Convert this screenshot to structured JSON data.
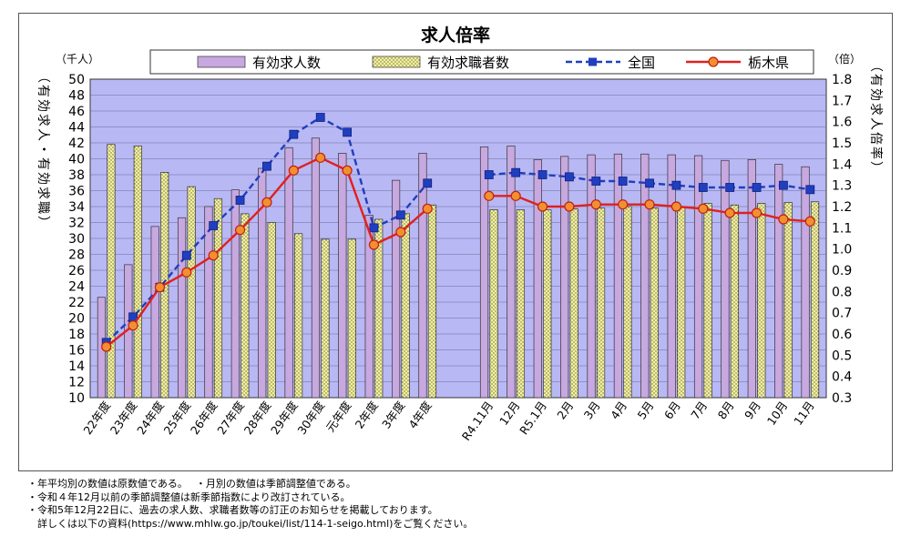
{
  "chart_data": {
    "type": "bar",
    "title": "求人倍率",
    "left_axis": {
      "label": "有効求人・有効求職",
      "unit": "（千人）",
      "ylim": [
        10,
        50
      ],
      "step": 2
    },
    "right_axis": {
      "label": "有効求人倍率",
      "unit": "（倍）",
      "ylim": [
        0.3,
        1.8
      ],
      "step": 0.1
    },
    "categories": [
      "22年度",
      "23年度",
      "24年度",
      "25年度",
      "26年度",
      "27年度",
      "28年度",
      "29年度",
      "30年度",
      "元年度",
      "2年度",
      "3年度",
      "4年度",
      "R4.11月",
      "12月",
      "R5.1月",
      "2月",
      "3月",
      "4月",
      "5月",
      "6月",
      "7月",
      "8月",
      "9月",
      "10月",
      "11月"
    ],
    "gap_after_index": 12,
    "series": [
      {
        "name": "有効求人数",
        "kind": "bar",
        "axis": "left",
        "color": "#c8a8e0",
        "values": [
          22.6,
          26.7,
          31.5,
          32.6,
          34.0,
          36.1,
          38.8,
          41.4,
          42.6,
          40.7,
          32.9,
          37.3,
          40.7,
          41.5,
          41.6,
          39.9,
          40.3,
          40.5,
          40.6,
          40.6,
          40.5,
          40.4,
          39.8,
          39.9,
          39.3,
          39.0
        ]
      },
      {
        "name": "有効求職者数",
        "kind": "bar",
        "axis": "left",
        "color": "#f2f0a0",
        "values": [
          41.8,
          41.6,
          38.3,
          36.5,
          35.0,
          33.1,
          32.0,
          30.6,
          29.9,
          29.9,
          32.4,
          33.1,
          34.2,
          33.6,
          33.6,
          33.6,
          33.7,
          33.8,
          34.0,
          33.8,
          33.9,
          34.4,
          34.2,
          34.4,
          34.5,
          34.6
        ]
      },
      {
        "name": "全国",
        "kind": "line",
        "axis": "right",
        "color": "#1f3fbf",
        "dashed": true,
        "marker": "square",
        "values": [
          0.56,
          0.68,
          0.82,
          0.97,
          1.11,
          1.23,
          1.39,
          1.54,
          1.62,
          1.55,
          1.1,
          1.16,
          1.31,
          1.35,
          1.36,
          1.35,
          1.34,
          1.32,
          1.32,
          1.31,
          1.3,
          1.29,
          1.29,
          1.29,
          1.3,
          1.28
        ]
      },
      {
        "name": "栃木県",
        "kind": "line",
        "axis": "right",
        "color": "#e02020",
        "dashed": false,
        "marker": "circle",
        "values": [
          0.54,
          0.64,
          0.82,
          0.89,
          0.97,
          1.09,
          1.22,
          1.37,
          1.43,
          1.37,
          1.02,
          1.08,
          1.19,
          1.25,
          1.25,
          1.2,
          1.2,
          1.21,
          1.21,
          1.21,
          1.2,
          1.19,
          1.17,
          1.17,
          1.14,
          1.13
        ]
      }
    ],
    "legend_position": "top",
    "grid": true
  },
  "notes": [
    "・年平均別の数値は原数値である。　 ・月別の数値は季節調整値である。",
    "・令和４年12月以前の季節調整値は新季節指数により改訂されている。",
    "・令和5年12月22日に、過去の求人数、求職者数等の訂正のお知らせを掲載しております。",
    "　詳しくは以下の資料(https://www.mhlw.go.jp/toukei/list/114-1-seigo.html)をご覧ください。"
  ]
}
